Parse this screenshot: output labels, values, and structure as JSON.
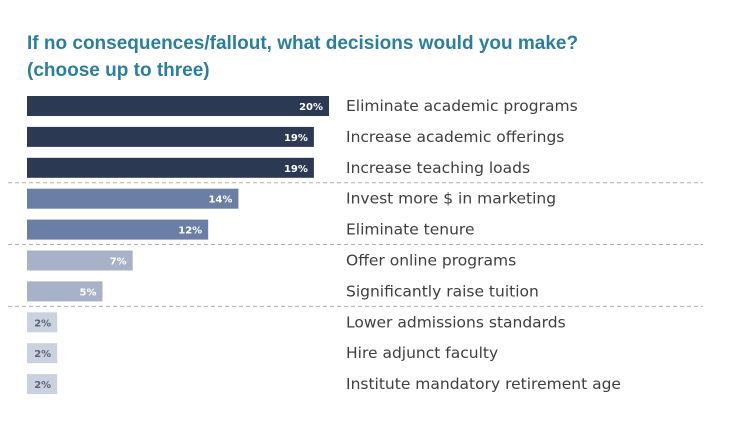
{
  "chart_data": {
    "type": "bar",
    "orientation": "horizontal",
    "title": "If no consequences/fallout, what decisions would you make?",
    "subtitle": "(choose up to three)",
    "categories": [
      "Eliminate academic programs",
      "Increase academic offerings",
      "Increase teaching loads",
      "Invest more $ in marketing",
      "Eliminate tenure",
      "Offer online programs",
      "Significantly raise tuition",
      "Lower admissions standards",
      "Hire adjunct faculty",
      "Institute mandatory retirement age"
    ],
    "values": [
      20,
      19,
      19,
      14,
      12,
      7,
      5,
      2,
      2,
      2
    ],
    "value_labels": [
      "20%",
      "19%",
      "19%",
      "14%",
      "12%",
      "7%",
      "5%",
      "2%",
      "2%",
      "2%"
    ],
    "unit": "%",
    "groups": [
      0,
      0,
      0,
      1,
      1,
      2,
      2,
      3,
      3,
      3
    ],
    "group_colors": [
      "#2b3a52",
      "#6b7fa6",
      "#a7b2c9",
      "#cbd2df"
    ],
    "label_colors": [
      "#ffffff",
      "#ffffff",
      "#ffffff",
      "#5a6476"
    ],
    "separator_color": "#b0b0b0",
    "grid": false,
    "legend": "none"
  }
}
